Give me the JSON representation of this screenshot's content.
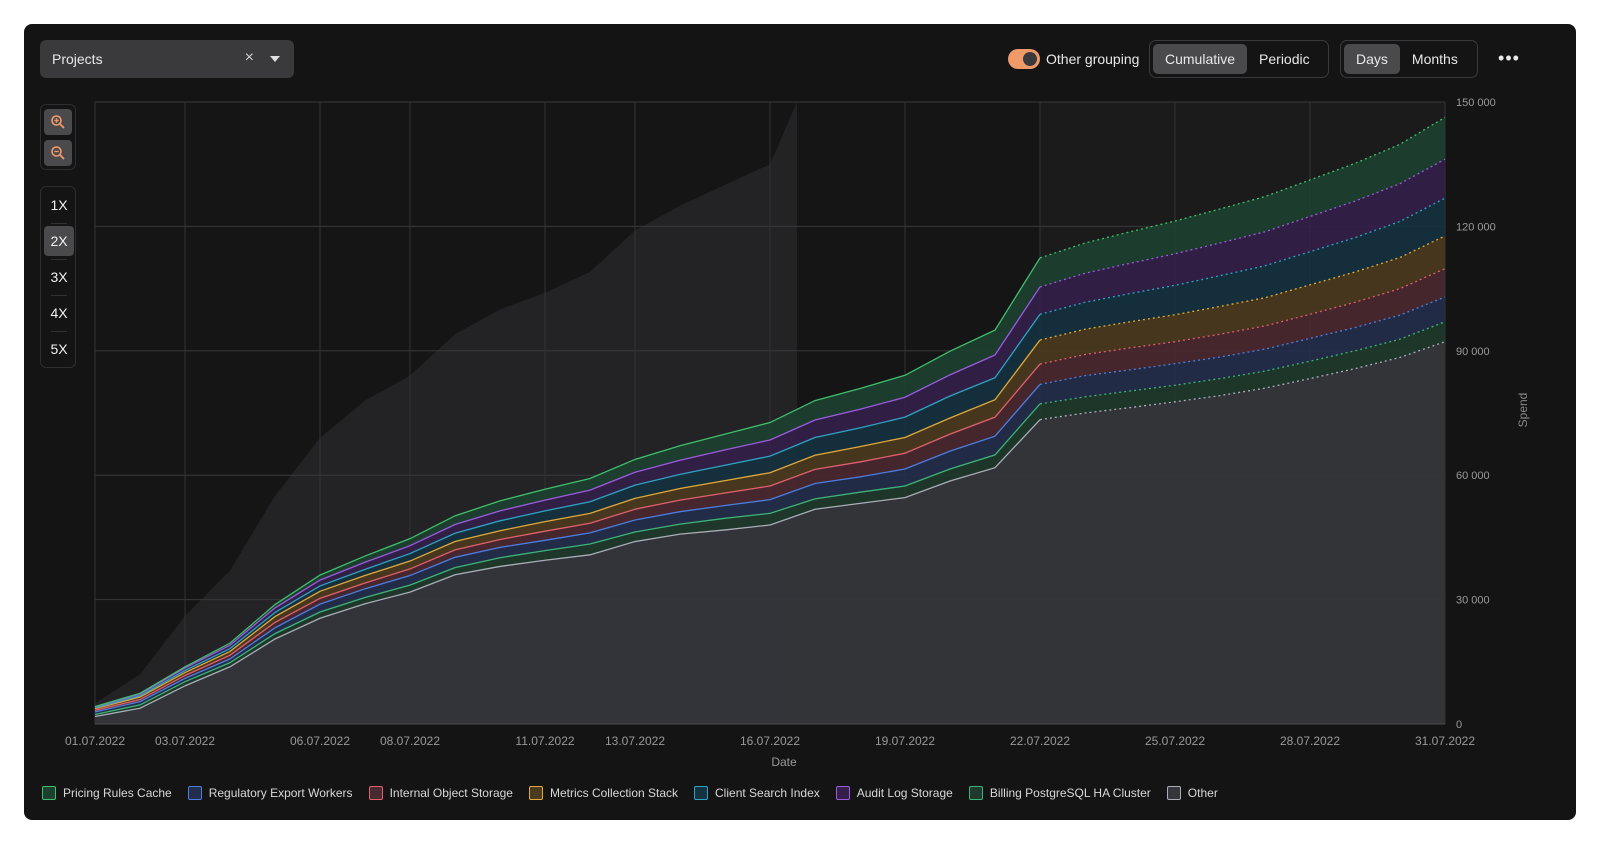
{
  "toolbar": {
    "filter_label": "Projects",
    "clear_icon": "close-icon",
    "dropdown_icon": "chevron-down-icon",
    "grouping_label": "Other grouping",
    "grouping_enabled": true,
    "mode_options": [
      "Cumulative",
      "Periodic"
    ],
    "mode_selected": "Cumulative",
    "period_options": [
      "Days",
      "Months"
    ],
    "period_selected": "Days",
    "more_label": "•••"
  },
  "zoom": {
    "in_icon": "zoom-in-icon",
    "out_icon": "zoom-out-icon",
    "multipliers": [
      "1X",
      "2X",
      "3X",
      "4X",
      "5X"
    ],
    "selected": "2X"
  },
  "colors": {
    "accent": "#f09a6a",
    "background": "#141414"
  },
  "chart_data": {
    "type": "area",
    "stacked": true,
    "xlabel": "Date",
    "ylabel": "Spend",
    "ylim": [
      0,
      150000
    ],
    "y_ticks": [
      0,
      30000,
      60000,
      90000,
      120000,
      150000
    ],
    "y_tick_labels": [
      "0",
      "30 000",
      "60 000",
      "90 000",
      "120 000",
      "150 000"
    ],
    "x_tick_labels": [
      "01.07.2022",
      "03.07.2022",
      "06.07.2022",
      "08.07.2022",
      "11.07.2022",
      "13.07.2022",
      "16.07.2022",
      "19.07.2022",
      "22.07.2022",
      "25.07.2022",
      "28.07.2022",
      "31.07.2022"
    ],
    "x_tick_days": [
      1,
      3,
      6,
      8,
      11,
      13,
      16,
      19,
      22,
      25,
      28,
      31
    ],
    "xlim_days": [
      1,
      31
    ],
    "forecast_from_day": 22,
    "grid": true,
    "legend_position": "bottom",
    "background_area": {
      "name": "",
      "days": [
        1,
        2,
        3,
        4,
        5,
        6,
        7,
        8,
        9,
        10,
        11,
        12,
        13,
        14,
        15,
        16,
        16.6
      ],
      "values": [
        5000,
        12000,
        26000,
        37000,
        55000,
        69000,
        78000,
        84000,
        94000,
        100000,
        104000,
        109000,
        119000,
        125000,
        130000,
        135000,
        150000
      ]
    },
    "days": [
      1,
      2,
      3,
      4,
      5,
      6,
      7,
      8,
      9,
      10,
      11,
      12,
      13,
      14,
      15,
      16,
      17,
      18,
      19,
      20,
      21,
      22,
      23,
      24,
      25,
      26,
      27,
      28,
      29,
      30,
      31
    ],
    "series": [
      {
        "name": "Other",
        "color": "#a8adb6",
        "fill": "#34363a",
        "values": [
          1800,
          3800,
          9200,
          13800,
          20500,
          25500,
          29000,
          31800,
          36000,
          38000,
          39500,
          40800,
          44000,
          45800,
          46800,
          48000,
          51800,
          53200,
          54600,
          58600,
          61800,
          73400,
          75000,
          76300,
          77700,
          79200,
          81000,
          83300,
          85700,
          88400,
          92200
        ]
      },
      {
        "name": "Billing PostgreSQL HA Cluster",
        "color": "#3db37a",
        "fill": "#1f3a2c",
        "values": [
          500,
          800,
          1000,
          1000,
          1300,
          1500,
          1500,
          1700,
          1700,
          2100,
          2300,
          2600,
          2300,
          2400,
          2800,
          2800,
          2500,
          2700,
          2800,
          2900,
          3100,
          3800,
          3900,
          4000,
          4000,
          4100,
          4100,
          4200,
          4300,
          4400,
          4800
        ]
      },
      {
        "name": "Regulatory Export Workers",
        "color": "#4d7de0",
        "fill": "#232d4a",
        "values": [
          600,
          800,
          800,
          900,
          1400,
          1900,
          2100,
          2300,
          2500,
          2500,
          2500,
          2700,
          2900,
          3000,
          3100,
          3300,
          3700,
          3700,
          4100,
          4300,
          4500,
          4700,
          5100,
          5100,
          5200,
          5200,
          5300,
          5500,
          5600,
          5800,
          6000
        ]
      },
      {
        "name": "Internal Object Storage",
        "color": "#e0606c",
        "fill": "#4a2830",
        "values": [
          400,
          500,
          700,
          900,
          1300,
          1400,
          1400,
          1600,
          1800,
          1900,
          2200,
          2300,
          2600,
          2800,
          3000,
          3300,
          3400,
          3600,
          3800,
          4100,
          4600,
          4900,
          5100,
          5300,
          5300,
          5500,
          5600,
          5800,
          6100,
          6400,
          6800
        ]
      },
      {
        "name": "Metrics Collection Stack",
        "color": "#e0a93a",
        "fill": "#4a3a1e",
        "values": [
          400,
          600,
          700,
          900,
          1400,
          1700,
          1800,
          1900,
          2000,
          2100,
          2300,
          2400,
          2600,
          2800,
          3000,
          3200,
          3400,
          3700,
          3800,
          3900,
          4200,
          5800,
          6100,
          6300,
          6500,
          6700,
          6800,
          7100,
          7300,
          7500,
          7900
        ]
      },
      {
        "name": "Client Search Index",
        "color": "#2fa2c2",
        "fill": "#14323f",
        "values": [
          200,
          300,
          500,
          700,
          1000,
          1300,
          1500,
          1800,
          2000,
          2400,
          2600,
          2800,
          3200,
          3400,
          3700,
          4000,
          4300,
          4500,
          4900,
          5300,
          5300,
          6200,
          6500,
          6800,
          7100,
          7400,
          7700,
          8000,
          8300,
          8700,
          9100
        ]
      },
      {
        "name": "Audit Log Storage",
        "color": "#9b5ce0",
        "fill": "#331f4a",
        "values": [
          200,
          400,
          600,
          800,
          1100,
          1400,
          1700,
          1900,
          2100,
          2400,
          2600,
          2800,
          3100,
          3400,
          3700,
          3900,
          4200,
          4500,
          4800,
          5100,
          5500,
          6600,
          7000,
          7300,
          7600,
          7900,
          8200,
          8500,
          8800,
          9100,
          9400
        ]
      },
      {
        "name": "Pricing Rules Cache",
        "color": "#3fbf6e",
        "fill": "#1d4030",
        "values": [
          100,
          200,
          300,
          500,
          800,
          1200,
          1500,
          1700,
          2100,
          2400,
          2600,
          2800,
          3100,
          3500,
          3800,
          4200,
          4700,
          5000,
          5300,
          5700,
          6000,
          7000,
          7300,
          7600,
          7900,
          8200,
          8500,
          8800,
          9100,
          9500,
          10100
        ]
      }
    ],
    "legend_order": [
      "Pricing Rules Cache",
      "Regulatory Export Workers",
      "Internal Object Storage",
      "Metrics Collection Stack",
      "Client Search Index",
      "Audit Log Storage",
      "Billing PostgreSQL HA Cluster",
      "Other"
    ]
  }
}
